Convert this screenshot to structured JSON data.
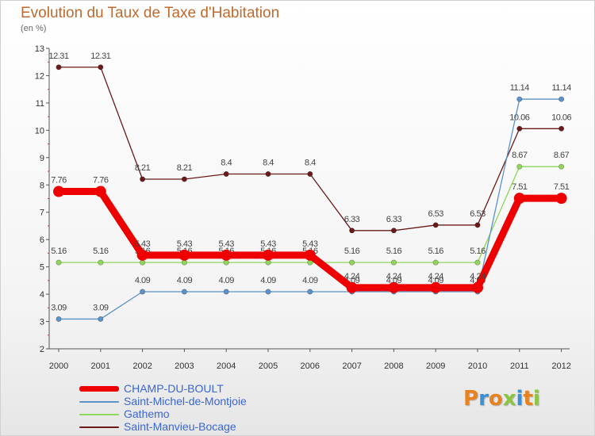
{
  "header": {
    "title": "Evolution du Taux de Taxe d'Habitation",
    "subtitle": "(en %)"
  },
  "logo": {
    "text": "Proxiti",
    "colors": [
      "#e8821e",
      "#3a8fd6",
      "#e8821e",
      "#8cc63f",
      "#3a8fd6",
      "#e8821e",
      "#8cc63f"
    ]
  },
  "chart_data": {
    "type": "line",
    "title": "Evolution du Taux de Taxe d'Habitation",
    "subtitle": "(en %)",
    "xlabel": "",
    "ylabel": "",
    "ylim": [
      2,
      13
    ],
    "yticks": [
      "2",
      "3",
      "4",
      "5",
      "6",
      "7",
      "8",
      "9",
      "10",
      "11",
      "12",
      "13"
    ],
    "grid": false,
    "legend_position": "bottom-left",
    "categories": [
      "2000",
      "2001",
      "2002",
      "2003",
      "2004",
      "2005",
      "2006",
      "2007",
      "2008",
      "2009",
      "2010",
      "2011",
      "2012"
    ],
    "series": [
      {
        "name": "Saint-Manvieu-Bocage",
        "color": "#6b1a1a",
        "weight": "thin",
        "values": [
          12.31,
          12.31,
          8.21,
          8.21,
          8.4,
          8.4,
          8.4,
          6.33,
          6.33,
          6.53,
          6.53,
          10.06,
          10.06
        ],
        "labels": [
          "12.31",
          "12.31",
          "8.21",
          "8.21",
          "8.4",
          "8.4",
          "8.4",
          "6.33",
          "6.33",
          "6.53",
          "6.53",
          "10.06",
          "10.06"
        ]
      },
      {
        "name": "Gathemo",
        "color": "#8fd65a",
        "weight": "thin",
        "values": [
          5.16,
          5.16,
          5.16,
          5.16,
          5.16,
          5.16,
          5.16,
          5.16,
          5.16,
          5.16,
          5.16,
          8.67,
          8.67
        ],
        "labels": [
          "5.16",
          "5.16",
          "5.16",
          "5.16",
          "5.16",
          "5.16",
          "5.16",
          "5.16",
          "5.16",
          "5.16",
          "5.16",
          "8.67",
          "8.67"
        ]
      },
      {
        "name": "Saint-Michel-de-Montjoie",
        "color": "#5b93c9",
        "weight": "thin",
        "values": [
          3.09,
          3.09,
          4.09,
          4.09,
          4.09,
          4.09,
          4.09,
          4.09,
          4.09,
          4.09,
          4.09,
          11.14,
          11.14
        ],
        "labels": [
          "3.09",
          "3.09",
          "4.09",
          "4.09",
          "4.09",
          "4.09",
          "4.09",
          "4.09",
          "4.09",
          "4.09",
          "4.09",
          "11.14",
          "11.14"
        ]
      },
      {
        "name": "CHAMP-DU-BOULT",
        "color": "#ee0000",
        "weight": "thick",
        "values": [
          7.76,
          7.76,
          5.43,
          5.43,
          5.43,
          5.43,
          5.43,
          4.24,
          4.24,
          4.24,
          4.24,
          7.51,
          7.51
        ],
        "labels": [
          "7.76",
          "7.76",
          "5.43",
          "5.43",
          "5.43",
          "5.43",
          "5.43",
          "4.24",
          "4.24",
          "4.24",
          "4.24",
          "7.51",
          "7.51"
        ]
      }
    ]
  },
  "legend": {
    "items": [
      {
        "label": "CHAMP-DU-BOULT",
        "color": "#ee0000",
        "weight": "thick"
      },
      {
        "label": "Saint-Michel-de-Montjoie",
        "color": "#5b93c9",
        "weight": "thin"
      },
      {
        "label": "Gathemo",
        "color": "#8fd65a",
        "weight": "thin"
      },
      {
        "label": "Saint-Manvieu-Bocage",
        "color": "#6b1a1a",
        "weight": "thin"
      }
    ]
  }
}
